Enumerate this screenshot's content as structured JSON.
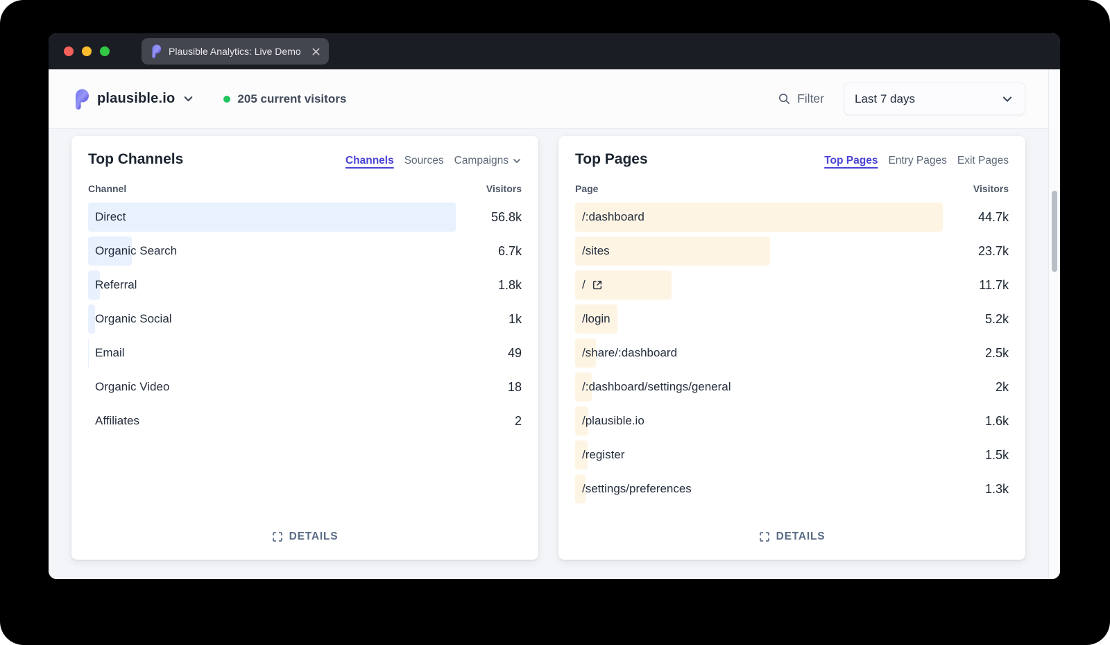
{
  "browser": {
    "tab_title": "Plausible Analytics: Live Demo"
  },
  "header": {
    "site_name": "plausible.io",
    "live_visitors": "205 current visitors",
    "filter_label": "Filter",
    "date_range_value": "Last 7 days"
  },
  "channels_panel": {
    "title": "Top Channels",
    "tabs": [
      {
        "label": "Channels",
        "active": true
      },
      {
        "label": "Sources",
        "active": false
      },
      {
        "label": "Campaigns",
        "active": false,
        "chevron": true
      }
    ],
    "columns": {
      "dimension": "Channel",
      "metric": "Visitors"
    },
    "rows": [
      {
        "label": "Direct",
        "visitors": "56.8k",
        "bar_pct": 100
      },
      {
        "label": "Organic Search",
        "visitors": "6.7k",
        "bar_pct": 11.8
      },
      {
        "label": "Referral",
        "visitors": "1.8k",
        "bar_pct": 3.2
      },
      {
        "label": "Organic Social",
        "visitors": "1k",
        "bar_pct": 1.8
      },
      {
        "label": "Email",
        "visitors": "49",
        "bar_pct": 0.1
      },
      {
        "label": "Organic Video",
        "visitors": "18",
        "bar_pct": 0
      },
      {
        "label": "Affiliates",
        "visitors": "2",
        "bar_pct": 0
      }
    ],
    "details_label": "DETAILS"
  },
  "pages_panel": {
    "title": "Top Pages",
    "tabs": [
      {
        "label": "Top Pages",
        "active": true
      },
      {
        "label": "Entry Pages",
        "active": false
      },
      {
        "label": "Exit Pages",
        "active": false
      }
    ],
    "columns": {
      "dimension": "Page",
      "metric": "Visitors"
    },
    "rows": [
      {
        "label": "/:dashboard",
        "visitors": "44.7k",
        "bar_pct": 100
      },
      {
        "label": "/sites",
        "visitors": "23.7k",
        "bar_pct": 53
      },
      {
        "label": "/",
        "visitors": "11.7k",
        "bar_pct": 26.2,
        "external_link": true
      },
      {
        "label": "/login",
        "visitors": "5.2k",
        "bar_pct": 11.6
      },
      {
        "label": "/share/:dashboard",
        "visitors": "2.5k",
        "bar_pct": 5.6
      },
      {
        "label": "/:dashboard/settings/general",
        "visitors": "2k",
        "bar_pct": 4.5
      },
      {
        "label": "/plausible.io",
        "visitors": "1.6k",
        "bar_pct": 3.6
      },
      {
        "label": "/register",
        "visitors": "1.5k",
        "bar_pct": 3.4
      },
      {
        "label": "/settings/preferences",
        "visitors": "1.3k",
        "bar_pct": 2.9
      }
    ],
    "details_label": "DETAILS"
  },
  "colors": {
    "accent_indigo": "#4a42d4",
    "channel_bar": "#e8f1fd",
    "page_bar": "#fdf4e3",
    "live_dot_green": "#22c55e",
    "brand_purple": "#5850ec"
  }
}
